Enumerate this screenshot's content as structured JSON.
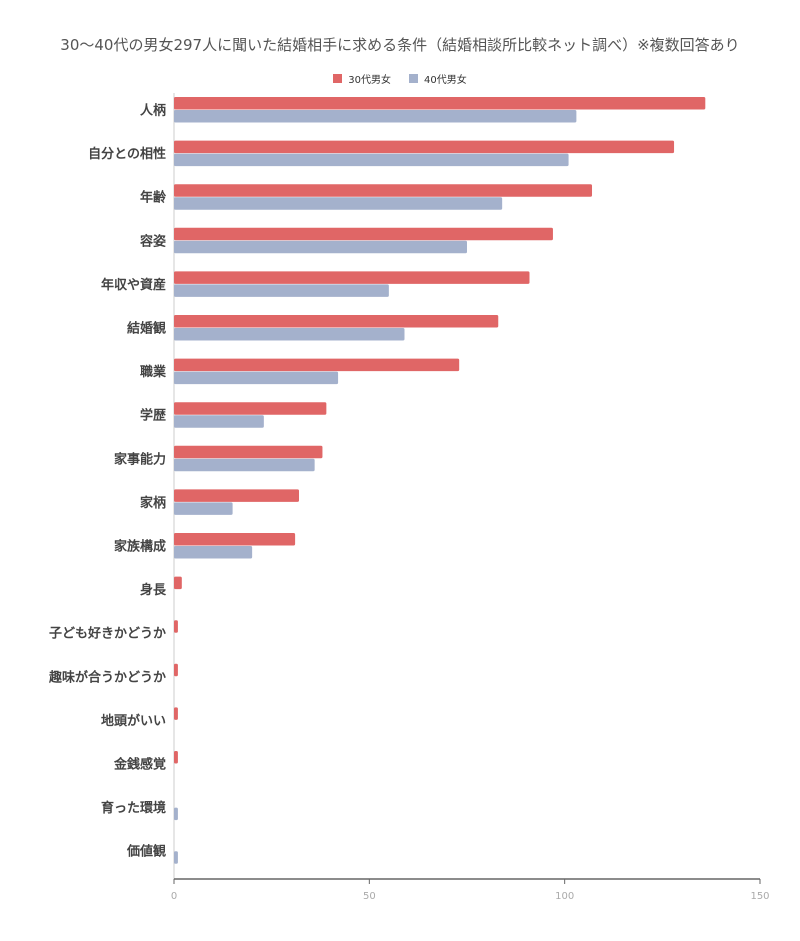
{
  "chart_data": {
    "type": "bar",
    "orientation": "horizontal",
    "title": "30〜40代の男女297人に聞いた結婚相手に求める条件（結婚相談所比較ネット調べ）※複数回答あり",
    "categories": [
      "人柄",
      "自分との相性",
      "年齢",
      "容姿",
      "年収や資産",
      "結婚観",
      "職業",
      "学歴",
      "家事能力",
      "家柄",
      "家族構成",
      "身長",
      "子ども好きかどうか",
      "趣味が合うかどうか",
      "地頭がいい",
      "金銭感覚",
      "育った環境",
      "価値観"
    ],
    "series": [
      {
        "name": "30代男女",
        "color": "#e06666",
        "values": [
          136,
          128,
          107,
          97,
          91,
          83,
          73,
          39,
          38,
          32,
          31,
          2,
          1,
          1,
          1,
          1,
          0,
          0
        ]
      },
      {
        "name": "40代男女",
        "color": "#a4b1cc",
        "values": [
          103,
          101,
          84,
          75,
          55,
          59,
          42,
          23,
          36,
          15,
          20,
          0,
          0,
          0,
          0,
          0,
          1,
          1
        ]
      }
    ],
    "xlim": [
      0,
      150
    ],
    "xticks": [
      "0",
      "50",
      "100",
      "150"
    ],
    "legend_position": "top-center",
    "grid": false
  }
}
